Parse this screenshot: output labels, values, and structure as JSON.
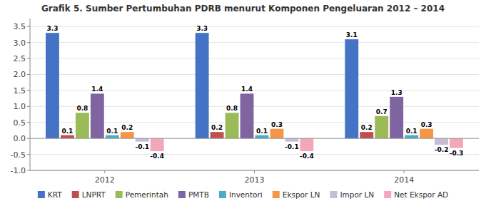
{
  "chart_data": {
    "type": "bar",
    "title": "Grafik 5. Sumber Pertumbuhan PDRB menurut Komponen Pengeluaran 2012 – 2014",
    "categories": [
      "2012",
      "2013",
      "2014"
    ],
    "series": [
      {
        "name": "KRT",
        "color": "#4472C4",
        "values": [
          3.3,
          3.3,
          3.1
        ]
      },
      {
        "name": "LNPRT",
        "color": "#C0504D",
        "values": [
          0.1,
          0.2,
          0.2
        ]
      },
      {
        "name": "Pemerintah",
        "color": "#9BBB59",
        "values": [
          0.8,
          0.8,
          0.7
        ]
      },
      {
        "name": "PMTB",
        "color": "#8064A2",
        "values": [
          1.4,
          1.4,
          1.3
        ]
      },
      {
        "name": "Inventori",
        "color": "#4BACC6",
        "values": [
          0.1,
          0.1,
          0.1
        ]
      },
      {
        "name": "Ekspor LN",
        "color": "#F79646",
        "values": [
          0.2,
          0.3,
          0.3
        ]
      },
      {
        "name": "Impor LN",
        "color": "#C4BDD5",
        "values": [
          -0.1,
          -0.1,
          -0.2
        ]
      },
      {
        "name": "Net Ekspor AD",
        "color": "#F4A7B9",
        "values": [
          -0.4,
          -0.4,
          -0.3
        ]
      }
    ],
    "ylim": [
      -1.0,
      3.75
    ],
    "yticks": [
      {
        "value": -1.0,
        "label": "-1.0"
      },
      -0.5,
      {
        "value": 0.0,
        "label": "0.0"
      },
      0.5,
      {
        "value": 1.0,
        "label": "1.0"
      },
      1.5,
      {
        "value": 2.0,
        "label": "2.0"
      },
      2.5,
      {
        "value": 3.0,
        "label": "3.0"
      },
      3.5
    ],
    "grid": true,
    "legend": "bottom",
    "data_labels": true
  }
}
